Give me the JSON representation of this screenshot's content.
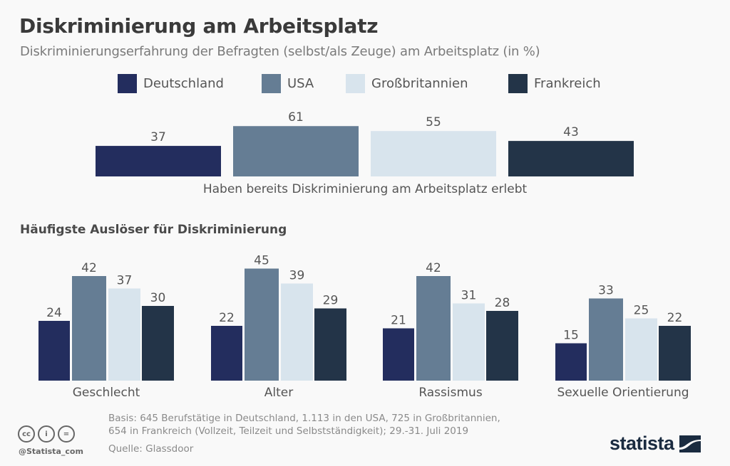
{
  "header": {
    "title": "Diskriminierung am Arbeitsplatz",
    "subtitle": "Diskriminierungserfahrung der Befragten (selbst/als Zeuge) am Arbeitsplatz (in %)"
  },
  "legend": [
    {
      "label": "Deutschland",
      "color": "#232d5e"
    },
    {
      "label": "USA",
      "color": "#657d94"
    },
    {
      "label": "Großbritannien",
      "color": "#d8e4ed"
    },
    {
      "label": "Frankreich",
      "color": "#233448"
    }
  ],
  "chart_data": [
    {
      "type": "bar",
      "title": "Diskriminierung am Arbeitsplatz",
      "subtitle": "Diskriminierungserfahrung der Befragten (selbst/als Zeuge) am Arbeitsplatz (in %)",
      "categories": [
        "Haben bereits Diskriminierung am Arbeitsplatz erlebt"
      ],
      "series": [
        {
          "name": "Deutschland",
          "values": [
            37
          ]
        },
        {
          "name": "USA",
          "values": [
            61
          ]
        },
        {
          "name": "Großbritannien",
          "values": [
            55
          ]
        },
        {
          "name": "Frankreich",
          "values": [
            43
          ]
        }
      ],
      "xlabel": "Haben bereits Diskriminierung am Arbeitsplatz erlebt",
      "ylabel": "",
      "unit": "%",
      "grid": false,
      "legend": "top"
    },
    {
      "type": "bar",
      "title": "Häufigste Auslöser für Diskriminierung",
      "categories": [
        "Geschlecht",
        "Alter",
        "Rassismus",
        "Sexuelle Orientierung"
      ],
      "series": [
        {
          "name": "Deutschland",
          "values": [
            24,
            22,
            21,
            15
          ]
        },
        {
          "name": "USA",
          "values": [
            42,
            45,
            42,
            33
          ]
        },
        {
          "name": "Großbritannien",
          "values": [
            37,
            39,
            31,
            25
          ]
        },
        {
          "name": "Frankreich",
          "values": [
            30,
            29,
            28,
            22
          ]
        }
      ],
      "xlabel": "",
      "ylabel": "",
      "unit": "%",
      "grid": false,
      "legend": "top"
    }
  ],
  "footer": {
    "basis": "Basis: 645 Berufstätige in Deutschland, 1.113 in den USA, 725 in Großbritannien,",
    "basis2": "654 in Frankreich (Vollzeit, Teilzeit und Selbstständigkeit); 29.-31. Juli 2019",
    "source": "Quelle: Glassdoor",
    "handle": "@Statista_com",
    "cc_icons": [
      "cc",
      "by",
      "nd"
    ],
    "cc_glyphs": [
      "cc",
      "i",
      "="
    ],
    "logo": "statista"
  }
}
